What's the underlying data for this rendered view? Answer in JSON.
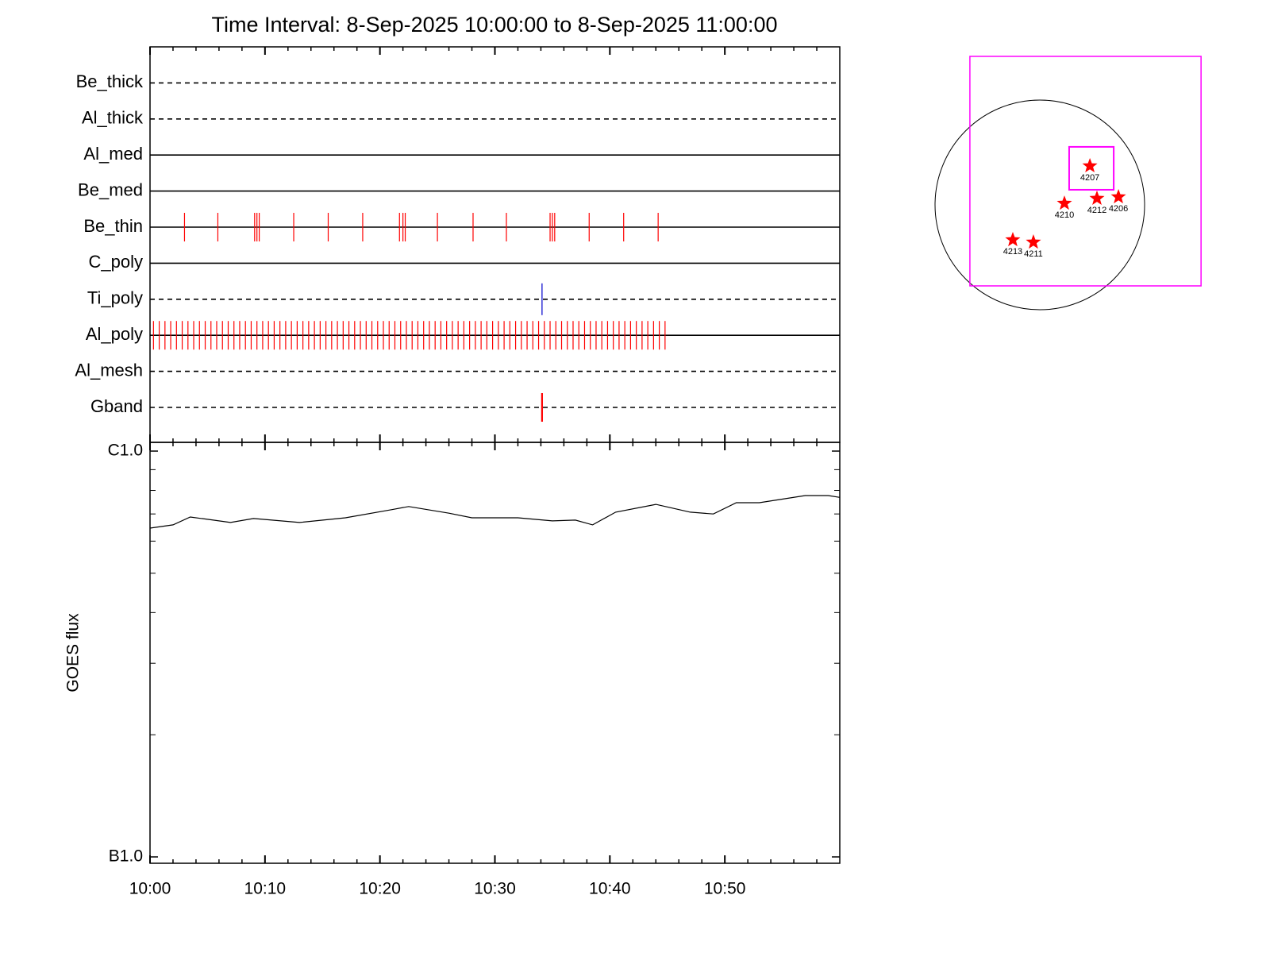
{
  "chart_data": [
    {
      "type": "event",
      "title": "Time Interval:  8-Sep-2025 10:00:00 to  8-Sep-2025 11:00:00",
      "categories": [
        "Be_thick",
        "Al_thick",
        "Al_med",
        "Be_med",
        "Be_thin",
        "C_poly",
        "Ti_poly",
        "Al_poly",
        "Al_mesh",
        "Gband"
      ],
      "line_styles": [
        "dashed",
        "dashed",
        "solid",
        "solid",
        "solid",
        "solid",
        "dashed",
        "solid",
        "dashed",
        "dashed"
      ],
      "colors": [
        "#ff0000",
        "#ff0000",
        "#ff0000",
        "#ff0000",
        "#ff0000",
        "#ff0000",
        "#0000cc",
        "#ff0000",
        "#ff0000",
        "#ff0000"
      ],
      "events": [
        [],
        [],
        [],
        [],
        [
          3.0,
          5.9,
          9.1,
          9.3,
          9.5,
          12.5,
          15.5,
          18.5,
          21.7,
          22.0,
          22.2,
          25.0,
          28.1,
          31.0,
          34.8,
          35.0,
          35.2,
          38.2,
          41.2,
          44.2
        ],
        [],
        [
          34.1
        ],
        [
          0.3,
          0.8,
          1.3,
          1.8,
          2.3,
          2.8,
          3.3,
          3.8,
          4.3,
          4.8,
          5.3,
          5.8,
          6.3,
          6.8,
          7.3,
          7.8,
          8.3,
          8.8,
          9.3,
          9.8,
          10.3,
          10.8,
          11.3,
          11.8,
          12.3,
          12.8,
          13.3,
          13.8,
          14.3,
          14.8,
          15.3,
          15.8,
          16.3,
          16.8,
          17.3,
          17.8,
          18.3,
          18.8,
          19.3,
          19.8,
          20.3,
          20.8,
          21.3,
          21.8,
          22.3,
          22.8,
          23.3,
          23.8,
          24.3,
          24.8,
          25.3,
          25.8,
          26.3,
          26.8,
          27.3,
          27.8,
          28.3,
          28.8,
          29.3,
          29.8,
          30.3,
          30.8,
          31.3,
          31.8,
          32.3,
          32.8,
          33.3,
          33.8,
          34.3,
          34.8,
          35.3,
          35.8,
          36.3,
          36.8,
          37.3,
          37.8,
          38.3,
          38.8,
          39.3,
          39.8,
          40.3,
          40.8,
          41.3,
          41.8,
          42.3,
          42.8,
          43.3,
          43.8,
          44.3,
          44.8
        ],
        [],
        [
          34.1
        ]
      ],
      "xlim": [
        0,
        60
      ],
      "xticks": [
        {
          "value": 0,
          "label": "10:00"
        },
        {
          "value": 10,
          "label": "10:10"
        },
        {
          "value": 20,
          "label": "10:20"
        },
        {
          "value": 30,
          "label": "10:30"
        },
        {
          "value": 40,
          "label": "10:40"
        },
        {
          "value": 50,
          "label": "10:50"
        }
      ],
      "xminor": [
        2,
        4,
        6,
        8,
        12,
        14,
        16,
        18,
        22,
        24,
        26,
        28,
        32,
        34,
        36,
        38,
        42,
        44,
        46,
        48,
        52,
        54,
        56,
        58
      ]
    },
    {
      "type": "line",
      "ylabel": "GOES flux",
      "log": true,
      "x": [
        0,
        2,
        3.5,
        5,
        7,
        9,
        13,
        17,
        21,
        22.5,
        26,
        28,
        32,
        35,
        37,
        38.5,
        40.5,
        44,
        47,
        49,
        51,
        53,
        57,
        59,
        60
      ],
      "values": [
        6.46e-07,
        6.58e-07,
        6.88e-07,
        6.79e-07,
        6.67e-07,
        6.82e-07,
        6.67e-07,
        6.85e-07,
        7.17e-07,
        7.3e-07,
        7.03e-07,
        6.85e-07,
        6.85e-07,
        6.73e-07,
        6.76e-07,
        6.58e-07,
        7.07e-07,
        7.39e-07,
        7.07e-07,
        7e-07,
        7.46e-07,
        7.46e-07,
        7.77e-07,
        7.77e-07,
        7.69e-07
      ],
      "color": "#000000",
      "ylim": [
        1e-07,
        1e-06
      ],
      "yticks": [
        {
          "value": 1e-07,
          "label": "B1.0"
        },
        {
          "value": 1e-06,
          "label": "C1.0"
        }
      ],
      "yminor": [
        2e-07,
        3e-07,
        4e-07,
        5e-07,
        6e-07,
        7e-07,
        8e-07,
        9e-07
      ]
    },
    {
      "type": "map",
      "solar_radius": 950,
      "fov_color": "#ff00ff",
      "fov": [
        {
          "xlim": [
            -634,
            1462
          ],
          "ylim": [
            -734,
            1346
          ]
        },
        {
          "xlim": [
            266,
            670
          ],
          "ylim": [
            137,
            526
          ]
        }
      ],
      "star_color": "#ff0000",
      "regions": [
        {
          "label": "4207",
          "x": 454,
          "y": 353
        },
        {
          "label": "4210",
          "x": 223,
          "y": 14
        },
        {
          "label": "4212",
          "x": 518,
          "y": 58
        },
        {
          "label": "4206",
          "x": 713,
          "y": 72
        },
        {
          "label": "4213",
          "x": -245,
          "y": -317
        },
        {
          "label": "4211",
          "x": -58,
          "y": -338
        }
      ]
    }
  ]
}
